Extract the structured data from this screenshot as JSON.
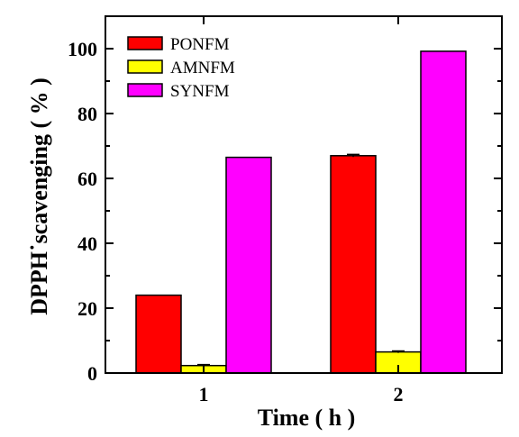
{
  "chart_data": {
    "type": "bar",
    "xlabel": "Time ( h )",
    "ylabel": "DPPH˙scavenging ( % )",
    "categories": [
      "1",
      "2"
    ],
    "ylim": [
      0,
      110
    ],
    "yticks": [
      0,
      20,
      40,
      60,
      80,
      100
    ],
    "legend_position": "top-left",
    "series": [
      {
        "name": "PONFM",
        "color": "#ff0000",
        "values": [
          24.0,
          67.0
        ],
        "errors": [
          0,
          0.4
        ]
      },
      {
        "name": "AMNFM",
        "color": "#ffff00",
        "values": [
          2.3,
          6.5
        ],
        "errors": [
          0.3,
          0.3
        ]
      },
      {
        "name": "SYNFM",
        "color": "#ff00ff",
        "values": [
          66.5,
          99.2
        ],
        "errors": [
          0,
          0
        ]
      }
    ]
  }
}
